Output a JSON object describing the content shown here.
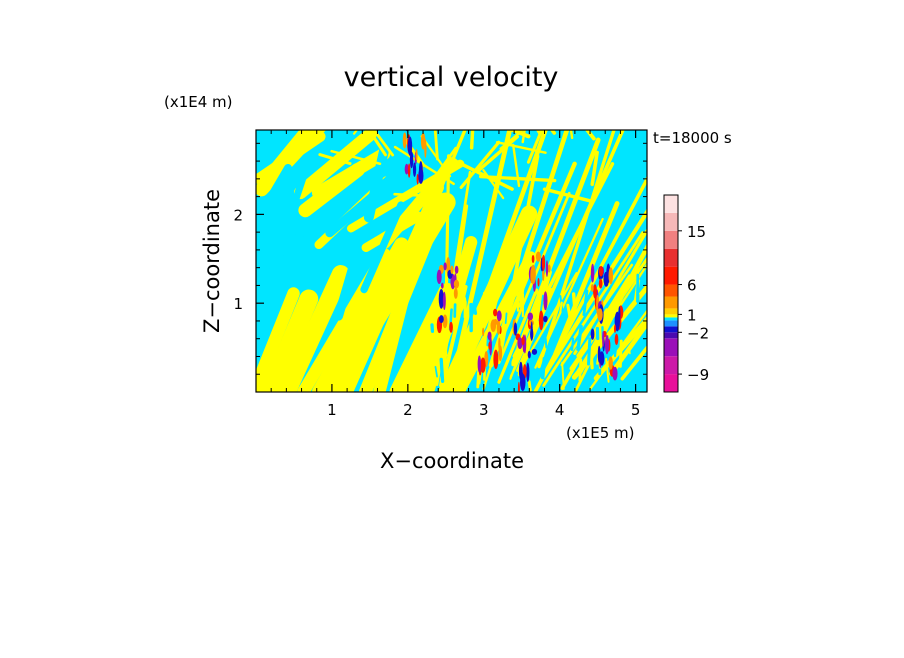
{
  "chart_data": {
    "type": "heatmap",
    "title": "vertical velocity",
    "xlabel": "X−coordinate",
    "ylabel": "Z−coordinate",
    "x_unit": "(x1E5 m)",
    "y_unit": "(x1E4 m)",
    "time_label": "t=18000 s",
    "xlim": [
      0,
      5.15
    ],
    "ylim": [
      0,
      2.95
    ],
    "x_ticks": [
      1,
      2,
      3,
      4,
      5
    ],
    "y_ticks": [
      1,
      2
    ],
    "x_tick_labels": [
      "1",
      "2",
      "3",
      "4",
      "5"
    ],
    "y_tick_labels": [
      "1",
      "2"
    ],
    "colorbar": {
      "levels": [
        -12,
        -9,
        -6,
        -3,
        -2,
        -1,
        0,
        0.5,
        1,
        2,
        4,
        6,
        9,
        12,
        15,
        18,
        21
      ],
      "colors": [
        "#e8109a",
        "#cc1aa8",
        "#9a10b8",
        "#4a0ab0",
        "#1010d0",
        "#1e90ff",
        "#00e5ff",
        "#ffff00",
        "#ffd000",
        "#ff9900",
        "#ff5500",
        "#ff1a00",
        "#e83030",
        "#f08080",
        "#f6b8b8",
        "#fde2e2"
      ],
      "labels": [
        "−9",
        "−2",
        "1",
        "6",
        "15"
      ],
      "label_values": [
        -9,
        -2,
        1,
        6,
        15
      ]
    },
    "field_colors": {
      "positive": "#ffff00",
      "negative": "#00e5ff",
      "strong_up": "#ff1a00",
      "strong_down": "#1010d0",
      "strong_down2": "#9a10b8"
    }
  }
}
